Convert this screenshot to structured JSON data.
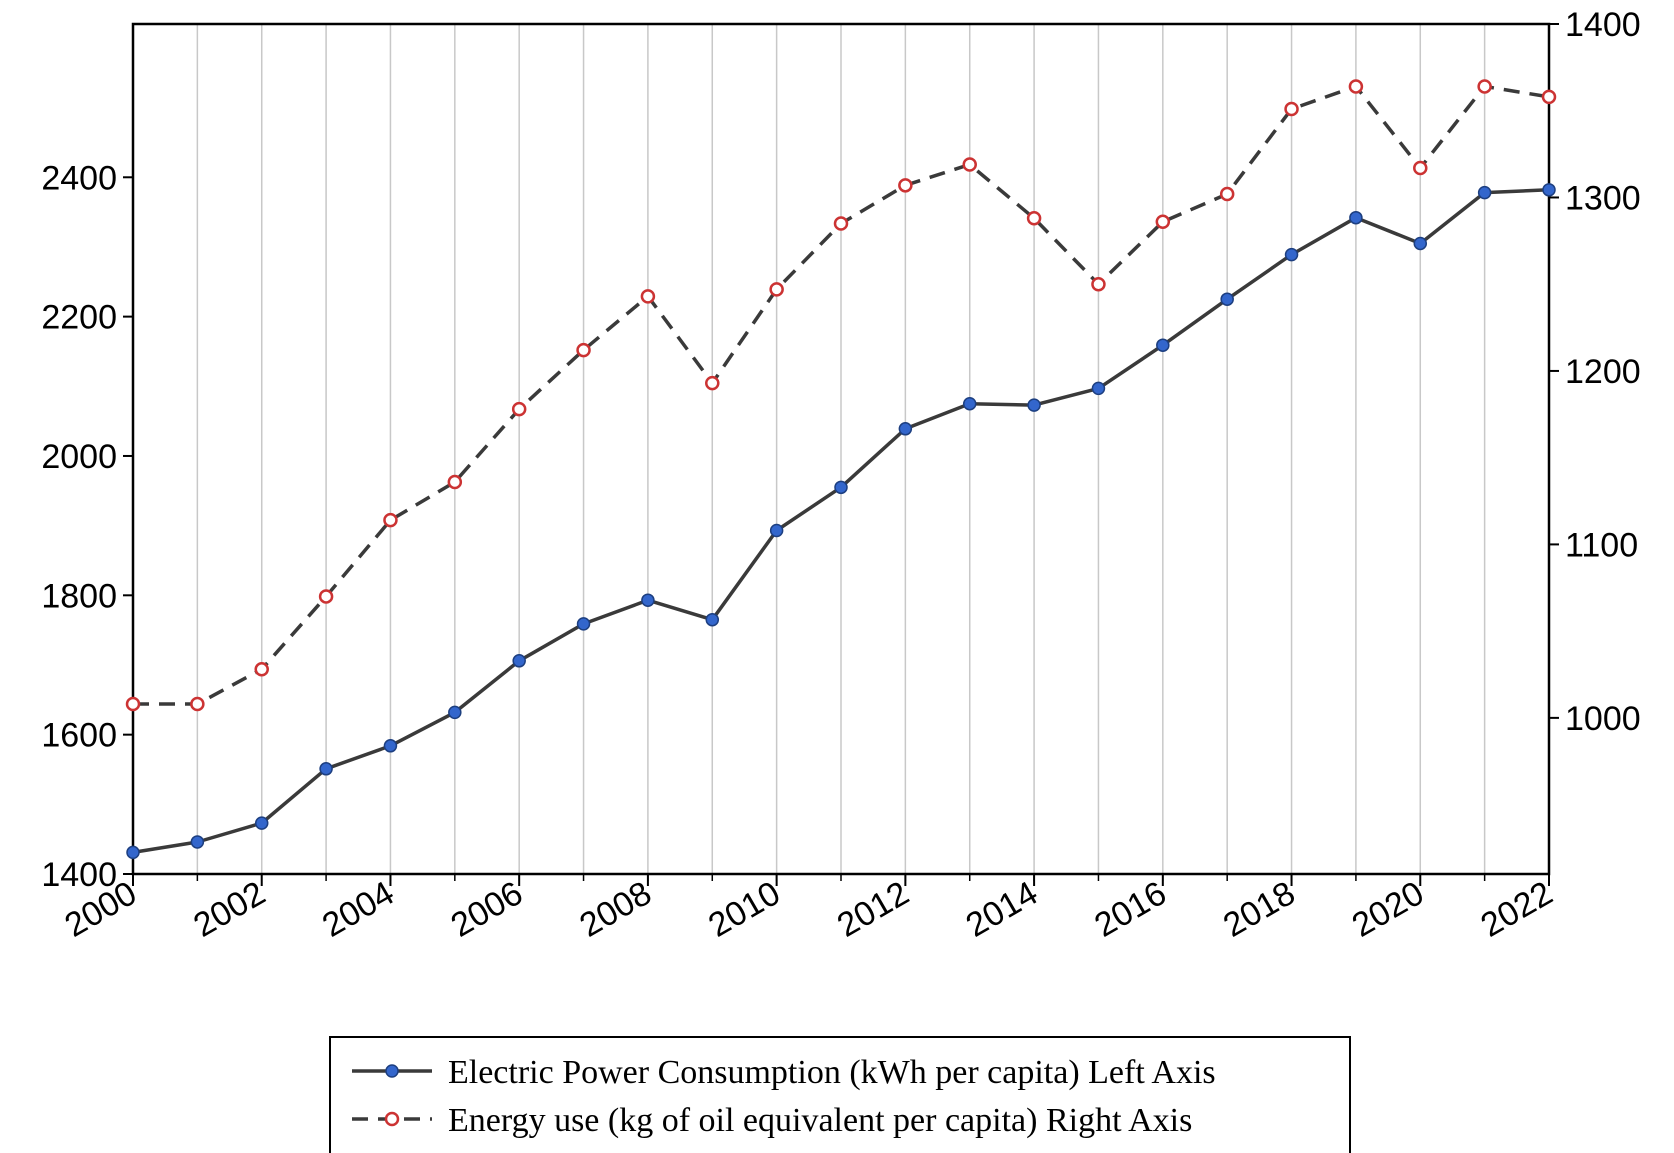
{
  "chart_data": {
    "type": "line",
    "title": "",
    "xlabel": "",
    "ylabel": "",
    "x": [
      2000,
      2001,
      2002,
      2003,
      2004,
      2005,
      2006,
      2007,
      2008,
      2009,
      2010,
      2011,
      2012,
      2013,
      2014,
      2015,
      2016,
      2017,
      2018,
      2019,
      2020,
      2021,
      2022
    ],
    "x_tick_labels": [
      "2000",
      "2002",
      "2004",
      "2006",
      "2008",
      "2010",
      "2012",
      "2014",
      "2016",
      "2018",
      "2020",
      "2022"
    ],
    "x_ticks": [
      2000,
      2002,
      2004,
      2006,
      2008,
      2010,
      2012,
      2014,
      2016,
      2018,
      2020,
      2022
    ],
    "xlim": [
      2000,
      2022
    ],
    "ylim_left": [
      1400,
      2620
    ],
    "yticks_left": [
      1400,
      1600,
      1800,
      2000,
      2200,
      2400
    ],
    "ylim_right": [
      910,
      1400
    ],
    "yticks_right": [
      1000,
      1100,
      1200,
      1300,
      1400
    ],
    "grid": "vertical",
    "legend_position": "bottom",
    "series": [
      {
        "name": "Electric Power Consumption (kWh per capita) Left Axis",
        "axis": "left",
        "style": "solid",
        "line_color": "#3a3a3a",
        "marker": "filled-circle",
        "marker_color": "#3366cc",
        "values": [
          1431,
          1446,
          1473,
          1551,
          1584,
          1632,
          1706,
          1759,
          1793,
          1765,
          1893,
          1955,
          2039,
          2075,
          2073,
          2097,
          2159,
          2225,
          2289,
          2342,
          2305,
          2378,
          2382
        ]
      },
      {
        "name": "Energy use (kg of oil equivalent per capita) Right Axis",
        "axis": "right",
        "style": "dashed",
        "line_color": "#3a3a3a",
        "marker": "hollow-circle",
        "marker_color": "#cc3333",
        "values": [
          1008,
          1008,
          1028,
          1070,
          1114,
          1136,
          1178,
          1212,
          1243,
          1193,
          1247,
          1285,
          1307,
          1319,
          1288,
          1250,
          1286,
          1302,
          1351,
          1364,
          1317,
          1364,
          1358
        ]
      }
    ]
  }
}
